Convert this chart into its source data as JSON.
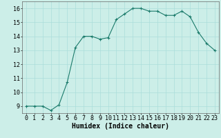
{
  "x": [
    0,
    1,
    2,
    3,
    4,
    5,
    6,
    7,
    8,
    9,
    10,
    11,
    12,
    13,
    14,
    15,
    16,
    17,
    18,
    19,
    20,
    21,
    22,
    23
  ],
  "y": [
    9.0,
    9.0,
    9.0,
    8.7,
    9.1,
    10.7,
    13.2,
    14.0,
    14.0,
    13.8,
    13.9,
    15.2,
    15.6,
    16.0,
    16.0,
    15.8,
    15.8,
    15.5,
    15.5,
    15.8,
    15.4,
    14.3,
    13.5,
    13.0
  ],
  "line_color": "#1a7a6a",
  "marker": "+",
  "marker_size": 3,
  "marker_color": "#1a7a6a",
  "bg_color": "#cceee8",
  "grid_major_color": "#aaddda",
  "grid_minor_color": "#bbeeea",
  "xlabel": "Humidex (Indice chaleur)",
  "xlabel_fontsize": 7,
  "tick_fontsize": 6,
  "xlim": [
    -0.5,
    23.5
  ],
  "ylim": [
    8.5,
    16.5
  ],
  "yticks": [
    9,
    10,
    11,
    12,
    13,
    14,
    15,
    16
  ],
  "xticks": [
    0,
    1,
    2,
    3,
    4,
    5,
    6,
    7,
    8,
    9,
    10,
    11,
    12,
    13,
    14,
    15,
    16,
    17,
    18,
    19,
    20,
    21,
    22,
    23
  ],
  "line_width": 0.8
}
